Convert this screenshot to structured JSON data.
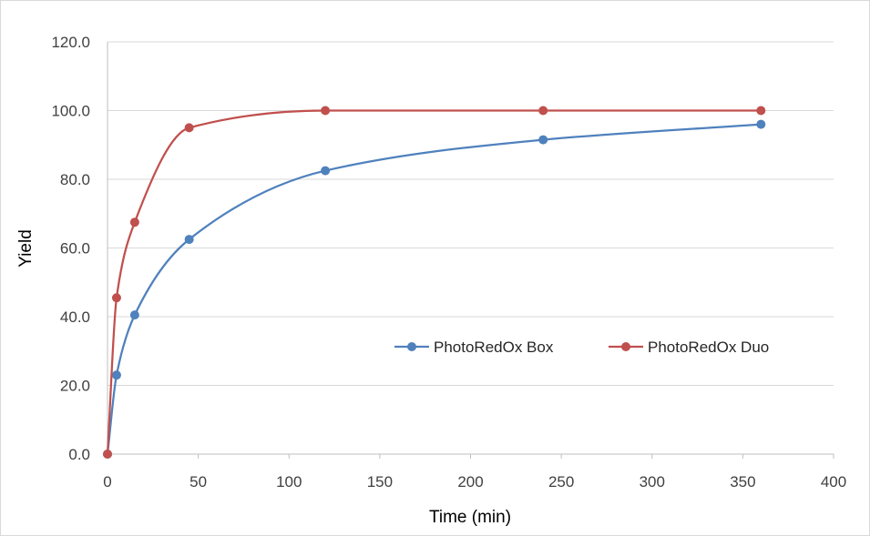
{
  "chart_data": {
    "type": "line",
    "xlabel": "Time (min)",
    "ylabel": "Yield",
    "xlim": [
      0,
      400
    ],
    "ylim": [
      0,
      120
    ],
    "x_ticks": [
      "0",
      "50",
      "100",
      "150",
      "200",
      "250",
      "300",
      "350",
      "400"
    ],
    "y_ticks": [
      "0.0",
      "20.0",
      "40.0",
      "60.0",
      "80.0",
      "100.0",
      "120.0"
    ],
    "grid": "horizontal",
    "legend_position": "center-right",
    "smooth": true,
    "series": [
      {
        "name": "PhotoRedOx Box",
        "color": "#4f81bd",
        "points": [
          [
            0,
            0
          ],
          [
            5,
            23
          ],
          [
            15,
            40.5
          ],
          [
            45,
            62.5
          ],
          [
            120,
            82.5
          ],
          [
            240,
            91.5
          ],
          [
            360,
            96
          ]
        ]
      },
      {
        "name": "PhotoRedOx Duo",
        "color": "#c0504d",
        "points": [
          [
            0,
            0
          ],
          [
            5,
            45.5
          ],
          [
            15,
            67.5
          ],
          [
            45,
            95
          ],
          [
            120,
            100
          ],
          [
            240,
            100
          ],
          [
            360,
            100
          ]
        ]
      }
    ]
  }
}
